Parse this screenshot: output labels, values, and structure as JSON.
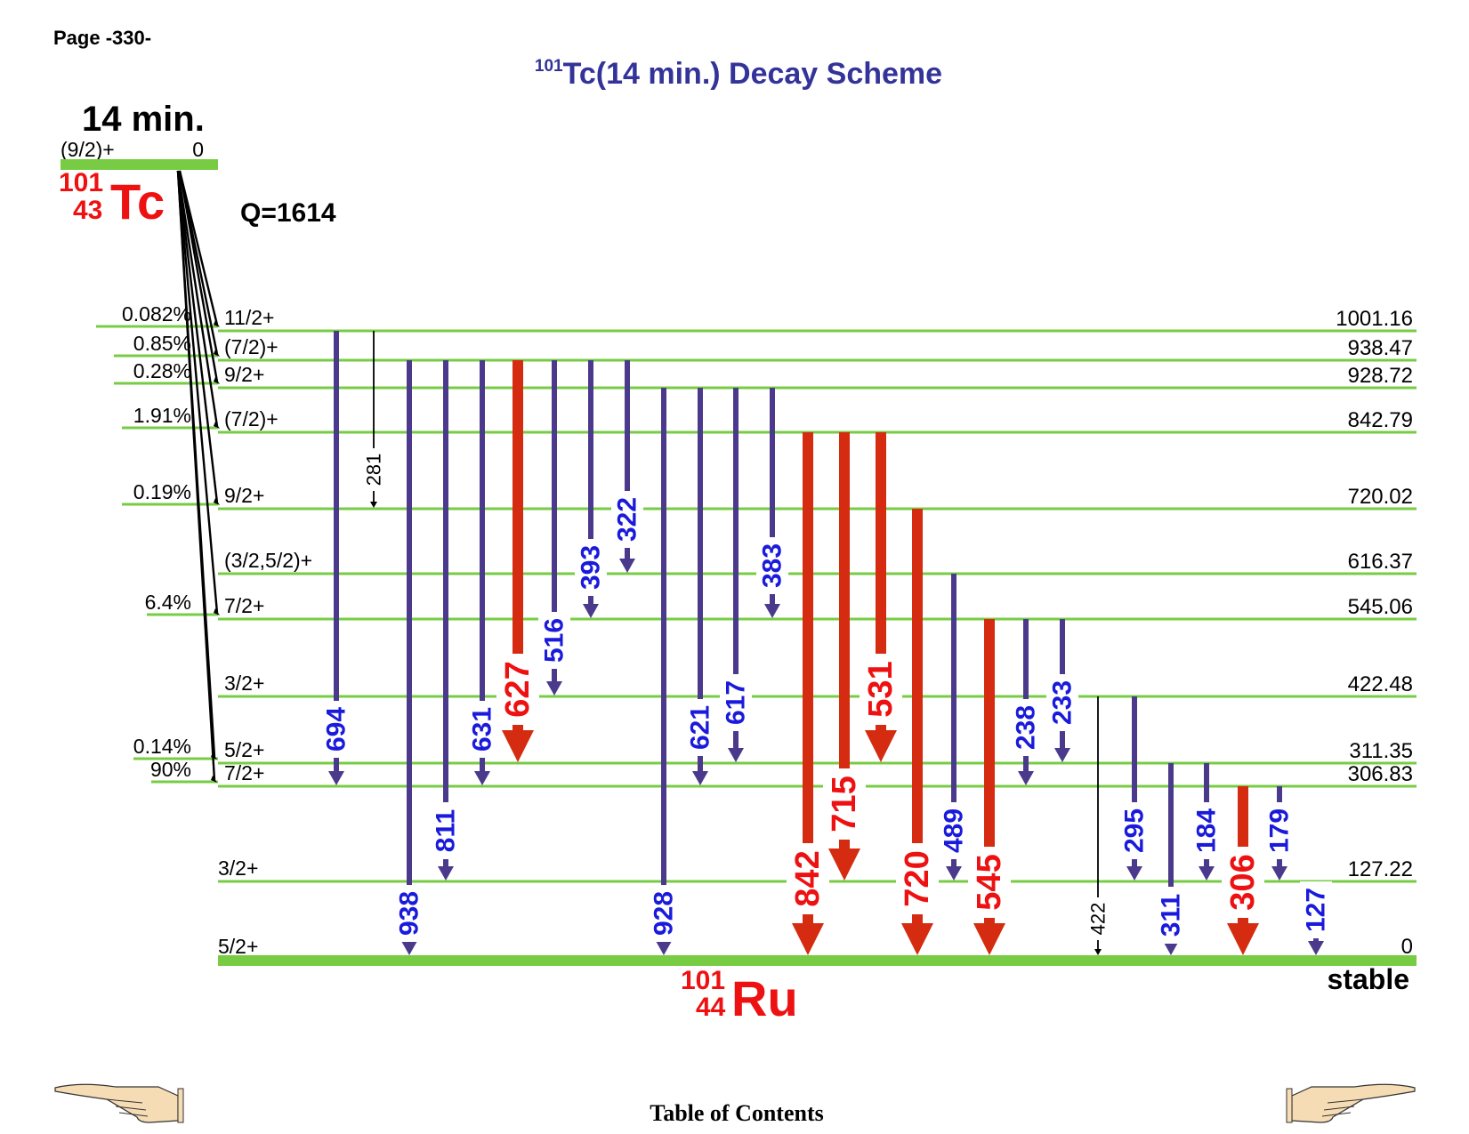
{
  "page": {
    "label": "Page -330-"
  },
  "title": {
    "mass": "101",
    "text": "Tc(14 min.) Decay Scheme"
  },
  "parent": {
    "half_life": "14 min.",
    "spin": "(9/2)+",
    "energy": "0",
    "mass": "101",
    "z": "43",
    "symbol": "Tc",
    "q_value": "Q=1614"
  },
  "daughter": {
    "mass": "101",
    "z": "44",
    "symbol": "Ru",
    "stable_label": "stable"
  },
  "levels": [
    {
      "energy": "1001.16",
      "spin": "11/2+",
      "feed": "0.082%"
    },
    {
      "energy": "938.47",
      "spin": "(7/2)+",
      "feed": "0.85%"
    },
    {
      "energy": "928.72",
      "spin": "9/2+",
      "feed": "0.28%"
    },
    {
      "energy": "842.79",
      "spin": "(7/2)+",
      "feed": "1.91%"
    },
    {
      "energy": "720.02",
      "spin": "9/2+",
      "feed": "0.19%"
    },
    {
      "energy": "616.37",
      "spin": "(3/2,5/2)+",
      "feed": ""
    },
    {
      "energy": "545.06",
      "spin": "7/2+",
      "feed": "6.4%"
    },
    {
      "energy": "422.48",
      "spin": "3/2+",
      "feed": ""
    },
    {
      "energy": "311.35",
      "spin": "5/2+",
      "feed": "0.14%"
    },
    {
      "energy": "306.83",
      "spin": "7/2+",
      "feed": "90%"
    },
    {
      "energy": "127.22",
      "spin": "3/2+",
      "feed": ""
    },
    {
      "energy": "0",
      "spin": "5/2+",
      "feed": ""
    }
  ],
  "gammas": [
    {
      "label": "694",
      "from": "1001.16",
      "to": "306.83",
      "style": "medium"
    },
    {
      "label": "281",
      "from": "1001.16",
      "to": "720.02",
      "style": "weak"
    },
    {
      "label": "938",
      "from": "938.47",
      "to": "0",
      "style": "medium"
    },
    {
      "label": "811",
      "from": "938.47",
      "to": "127.22",
      "style": "medium"
    },
    {
      "label": "631",
      "from": "938.47",
      "to": "306.83",
      "style": "medium"
    },
    {
      "label": "627",
      "from": "938.47",
      "to": "311.35",
      "style": "strong"
    },
    {
      "label": "516",
      "from": "938.47",
      "to": "422.48",
      "style": "medium"
    },
    {
      "label": "393",
      "from": "938.47",
      "to": "545.06",
      "style": "medium"
    },
    {
      "label": "322",
      "from": "938.47",
      "to": "616.37",
      "style": "medium"
    },
    {
      "label": "928",
      "from": "928.72",
      "to": "0",
      "style": "medium"
    },
    {
      "label": "621",
      "from": "928.72",
      "to": "306.83",
      "style": "medium"
    },
    {
      "label": "617",
      "from": "928.72",
      "to": "311.35",
      "style": "medium"
    },
    {
      "label": "383",
      "from": "928.72",
      "to": "545.06",
      "style": "medium"
    },
    {
      "label": "842",
      "from": "842.79",
      "to": "0",
      "style": "strong"
    },
    {
      "label": "715",
      "from": "842.79",
      "to": "127.22",
      "style": "strong"
    },
    {
      "label": "531",
      "from": "842.79",
      "to": "311.35",
      "style": "strong"
    },
    {
      "label": "720",
      "from": "720.02",
      "to": "0",
      "style": "strong"
    },
    {
      "label": "489",
      "from": "616.37",
      "to": "127.22",
      "style": "medium"
    },
    {
      "label": "545",
      "from": "545.06",
      "to": "0",
      "style": "strong"
    },
    {
      "label": "238",
      "from": "545.06",
      "to": "306.83",
      "style": "medium"
    },
    {
      "label": "233",
      "from": "545.06",
      "to": "311.35",
      "style": "medium"
    },
    {
      "label": "422",
      "from": "422.48",
      "to": "0",
      "style": "weak"
    },
    {
      "label": "295",
      "from": "422.48",
      "to": "127.22",
      "style": "medium"
    },
    {
      "label": "311",
      "from": "311.35",
      "to": "0",
      "style": "medium"
    },
    {
      "label": "184",
      "from": "311.35",
      "to": "127.22",
      "style": "medium"
    },
    {
      "label": "306",
      "from": "306.83",
      "to": "0",
      "style": "strong"
    },
    {
      "label": "179",
      "from": "306.83",
      "to": "127.22",
      "style": "medium"
    },
    {
      "label": "127",
      "from": "127.22",
      "to": "0",
      "style": "medium"
    }
  ],
  "footer": {
    "toc": "Table of Contents"
  },
  "colors": {
    "level_line": "#77cc44",
    "title": "#333399",
    "nuclide": "#ee1111",
    "gamma_medium": "#4b3a8c",
    "gamma_strong": "#d52b10",
    "label_medium": "#1a1adc",
    "label_strong": "#ee1111",
    "beta": "#000000"
  },
  "icons": {
    "prev": "pointing-hand-left-icon",
    "next": "pointing-hand-right-icon"
  }
}
